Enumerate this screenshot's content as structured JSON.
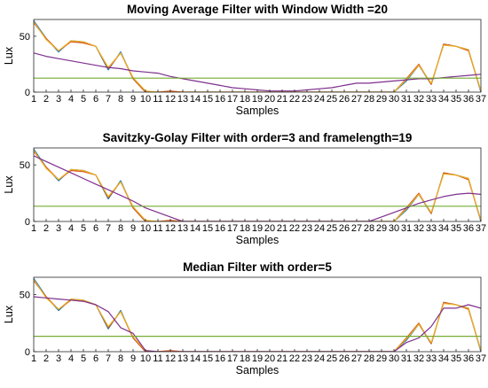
{
  "chart_data": [
    {
      "type": "line",
      "title": "Moving Average Filter with Window Width =20",
      "xlabel": "Samples",
      "ylabel": "Lux",
      "x": [
        1,
        2,
        3,
        4,
        5,
        6,
        7,
        8,
        9,
        10,
        11,
        12,
        13,
        14,
        15,
        16,
        17,
        18,
        19,
        20,
        21,
        22,
        23,
        24,
        25,
        26,
        27,
        28,
        29,
        30,
        31,
        32,
        33,
        34,
        35,
        36,
        37
      ],
      "xlim": [
        1,
        37
      ],
      "ylim": [
        0,
        65
      ],
      "yticks": [
        0,
        50
      ],
      "grid": false,
      "series": [
        {
          "color": "#0072BD",
          "values": [
            64,
            48,
            36,
            46,
            45,
            41,
            20,
            36,
            12,
            0,
            0,
            0,
            0,
            0,
            0,
            0,
            0,
            0,
            0,
            0,
            0,
            0,
            0,
            0,
            0,
            0,
            0,
            0,
            0,
            0,
            10,
            24,
            7,
            43,
            41,
            38,
            0
          ]
        },
        {
          "color": "#D95319",
          "values": [
            62,
            48,
            37,
            45,
            44,
            41,
            21,
            35,
            12,
            0,
            0,
            1,
            0,
            0,
            0,
            0,
            0,
            0,
            0,
            0,
            0,
            0,
            0,
            0,
            0,
            0,
            0,
            0,
            0,
            0,
            12,
            25,
            7,
            43,
            41,
            37,
            1
          ]
        },
        {
          "color": "#EDB120",
          "values": [
            63,
            47,
            37,
            46,
            45,
            41,
            22,
            35,
            13,
            1,
            0,
            0,
            0,
            0,
            0,
            0,
            0,
            0,
            0,
            0,
            0,
            0,
            0,
            0,
            0,
            0,
            0,
            0,
            0,
            0,
            11,
            24,
            8,
            42,
            41,
            38,
            1
          ]
        },
        {
          "color": "#7E2F8E",
          "values": [
            35,
            32,
            30,
            28,
            26,
            24,
            22,
            21,
            19,
            18,
            17,
            14,
            12,
            10,
            8,
            6,
            4,
            3,
            2,
            1,
            1,
            1,
            2,
            3,
            4,
            6,
            8,
            8,
            9,
            10,
            11,
            12,
            12,
            13,
            14,
            15,
            16
          ]
        },
        {
          "color": "#77AC30",
          "values": [
            12.5,
            12.5,
            12.5,
            12.5,
            12.5,
            12.5,
            12.5,
            12.5,
            12.5,
            12.5,
            12.5,
            12.5,
            12.5,
            12.5,
            12.5,
            12.5,
            12.5,
            12.5,
            12.5,
            12.5,
            12.5,
            12.5,
            12.5,
            12.5,
            12.5,
            12.5,
            12.5,
            12.5,
            12.5,
            12.5,
            12.5,
            12.5,
            12.5,
            12.5,
            12.5,
            12.5,
            12.5
          ]
        }
      ]
    },
    {
      "type": "line",
      "title": "Savitzky-Golay Filter with order=3 and framelength=19",
      "xlabel": "Samples",
      "ylabel": "Lux",
      "x": [
        1,
        2,
        3,
        4,
        5,
        6,
        7,
        8,
        9,
        10,
        11,
        12,
        13,
        14,
        15,
        16,
        17,
        18,
        19,
        20,
        21,
        22,
        23,
        24,
        25,
        26,
        27,
        28,
        29,
        30,
        31,
        32,
        33,
        34,
        35,
        36,
        37
      ],
      "xlim": [
        1,
        37
      ],
      "ylim": [
        0,
        65
      ],
      "yticks": [
        0,
        50
      ],
      "grid": false,
      "series": [
        {
          "color": "#0072BD",
          "values": [
            64,
            48,
            36,
            46,
            45,
            41,
            20,
            36,
            12,
            0,
            0,
            0,
            0,
            0,
            0,
            0,
            0,
            0,
            0,
            0,
            0,
            0,
            0,
            0,
            0,
            0,
            0,
            0,
            0,
            0,
            10,
            24,
            7,
            43,
            41,
            38,
            0
          ]
        },
        {
          "color": "#D95319",
          "values": [
            62,
            48,
            37,
            45,
            44,
            41,
            21,
            35,
            12,
            0,
            0,
            1,
            0,
            0,
            0,
            0,
            0,
            0,
            0,
            0,
            0,
            0,
            0,
            0,
            0,
            0,
            0,
            0,
            0,
            0,
            12,
            25,
            7,
            43,
            41,
            37,
            1
          ]
        },
        {
          "color": "#EDB120",
          "values": [
            63,
            47,
            37,
            46,
            45,
            41,
            22,
            35,
            13,
            1,
            0,
            0,
            0,
            0,
            0,
            0,
            0,
            0,
            0,
            0,
            0,
            0,
            0,
            0,
            0,
            0,
            0,
            0,
            0,
            0,
            11,
            24,
            8,
            42,
            41,
            38,
            1
          ]
        },
        {
          "color": "#7E2F8E",
          "values": [
            58,
            53,
            48,
            43,
            38,
            33,
            28,
            23,
            18,
            12,
            8,
            4,
            0,
            0,
            0,
            0,
            0,
            0,
            0,
            0,
            0,
            0,
            0,
            0,
            0,
            0,
            0,
            0,
            4,
            8,
            12,
            16,
            19,
            22,
            24,
            25,
            24
          ]
        },
        {
          "color": "#77AC30",
          "values": [
            13.5,
            13.5,
            13.5,
            13.5,
            13.5,
            13.5,
            13.5,
            13.5,
            13.5,
            13.5,
            13.5,
            13.5,
            13.5,
            13.5,
            13.5,
            13.5,
            13.5,
            13.5,
            13.5,
            13.5,
            13.5,
            13.5,
            13.5,
            13.5,
            13.5,
            13.5,
            13.5,
            13.5,
            13.5,
            13.5,
            13.5,
            13.5,
            13.5,
            13.5,
            13.5,
            13.5,
            13.5
          ]
        }
      ]
    },
    {
      "type": "line",
      "title": "Median Filter with order=5",
      "xlabel": "Samples",
      "ylabel": "Lux",
      "x": [
        1,
        2,
        3,
        4,
        5,
        6,
        7,
        8,
        9,
        10,
        11,
        12,
        13,
        14,
        15,
        16,
        17,
        18,
        19,
        20,
        21,
        22,
        23,
        24,
        25,
        26,
        27,
        28,
        29,
        30,
        31,
        32,
        33,
        34,
        35,
        36,
        37
      ],
      "xlim": [
        1,
        37
      ],
      "ylim": [
        0,
        65
      ],
      "yticks": [
        0,
        50
      ],
      "grid": false,
      "series": [
        {
          "color": "#0072BD",
          "values": [
            64,
            48,
            36,
            46,
            45,
            41,
            20,
            36,
            12,
            0,
            0,
            0,
            0,
            0,
            0,
            0,
            0,
            0,
            0,
            0,
            0,
            0,
            0,
            0,
            0,
            0,
            0,
            0,
            0,
            0,
            10,
            24,
            7,
            43,
            41,
            38,
            0
          ]
        },
        {
          "color": "#D95319",
          "values": [
            62,
            48,
            37,
            45,
            44,
            41,
            21,
            35,
            12,
            0,
            0,
            1,
            0,
            0,
            0,
            0,
            0,
            0,
            0,
            0,
            0,
            0,
            0,
            0,
            0,
            0,
            0,
            0,
            0,
            0,
            12,
            25,
            7,
            43,
            41,
            37,
            1
          ]
        },
        {
          "color": "#EDB120",
          "values": [
            63,
            47,
            37,
            46,
            45,
            41,
            22,
            35,
            13,
            1,
            0,
            0,
            0,
            0,
            0,
            0,
            0,
            0,
            0,
            0,
            0,
            0,
            0,
            0,
            0,
            0,
            0,
            0,
            0,
            0,
            11,
            24,
            8,
            42,
            41,
            38,
            1
          ]
        },
        {
          "color": "#7E2F8E",
          "values": [
            48,
            47,
            46,
            45,
            44,
            41,
            35,
            21,
            16,
            1,
            0,
            0,
            0,
            0,
            0,
            0,
            0,
            0,
            0,
            0,
            0,
            0,
            0,
            0,
            0,
            0,
            0,
            0,
            0,
            0,
            8,
            12,
            22,
            38,
            38,
            41,
            38
          ]
        },
        {
          "color": "#77AC30",
          "values": [
            13.5,
            13.5,
            13.5,
            13.5,
            13.5,
            13.5,
            13.5,
            13.5,
            13.5,
            13.5,
            13.5,
            13.5,
            13.5,
            13.5,
            13.5,
            13.5,
            13.5,
            13.5,
            13.5,
            13.5,
            13.5,
            13.5,
            13.5,
            13.5,
            13.5,
            13.5,
            13.5,
            13.5,
            13.5,
            13.5,
            13.5,
            13.5,
            13.5,
            13.5,
            13.5,
            13.5,
            13.5
          ]
        }
      ]
    }
  ]
}
